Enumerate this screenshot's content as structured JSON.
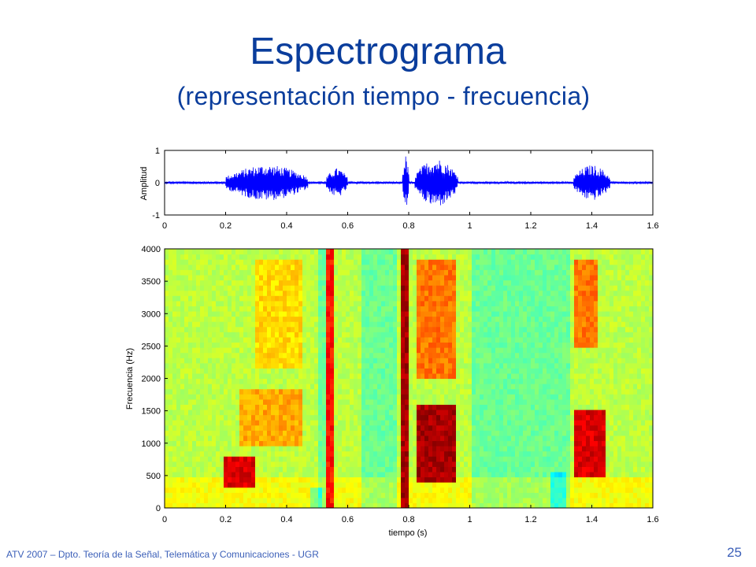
{
  "slide": {
    "title": "Espectrograma",
    "subtitle": "(representación tiempo - frecuencia)",
    "footer": "ATV 2007 – Dpto. Teoría de la Señal, Telemática y Comunicaciones - UGR",
    "page_number": "25"
  },
  "chart_data": [
    {
      "type": "line",
      "name": "waveform",
      "ylabel": "Amplitud",
      "xlabel": "",
      "xlim": [
        0,
        1.6
      ],
      "ylim": [
        -1,
        1
      ],
      "x_ticks": [
        0,
        0.2,
        0.4,
        0.6,
        0.8,
        1,
        1.2,
        1.4,
        1.6
      ],
      "y_ticks": [
        -1,
        0,
        1
      ],
      "x_tick_labels": [
        "0",
        "0.2",
        "0.4",
        "0.6",
        "0.8",
        "1",
        "1.2",
        "1.4",
        "1.6"
      ],
      "y_tick_labels": [
        "-1",
        "0",
        "1"
      ],
      "line_color": "#0000ff",
      "segments": [
        {
          "start": 0.2,
          "end": 0.47,
          "peak_amplitude": 0.55
        },
        {
          "start": 0.53,
          "end": 0.6,
          "peak_amplitude": 0.45
        },
        {
          "start": 0.78,
          "end": 0.8,
          "peak_amplitude": 0.85
        },
        {
          "start": 0.82,
          "end": 0.96,
          "peak_amplitude": 0.75
        },
        {
          "start": 1.34,
          "end": 1.46,
          "peak_amplitude": 0.55
        }
      ]
    },
    {
      "type": "heatmap",
      "name": "spectrogram",
      "xlabel": "tiempo (s)",
      "ylabel": "Frecuencia (Hz)",
      "xlim": [
        0,
        1.6
      ],
      "ylim": [
        0,
        4000
      ],
      "x_ticks": [
        0,
        0.2,
        0.4,
        0.6,
        0.8,
        1,
        1.2,
        1.4,
        1.6
      ],
      "y_ticks": [
        0,
        500,
        1000,
        1500,
        2000,
        2500,
        3000,
        3500,
        4000
      ],
      "x_tick_labels": [
        "0",
        "0.2",
        "0.4",
        "0.6",
        "0.8",
        "1",
        "1.2",
        "1.4",
        "1.6"
      ],
      "y_tick_labels": [
        "0",
        "500",
        "1000",
        "1500",
        "2000",
        "2500",
        "3000",
        "3500",
        "4000"
      ],
      "colormap": "jet",
      "high_energy_regions": [
        {
          "t": [
            0.2,
            0.3
          ],
          "f": [
            300,
            800
          ],
          "level": 0.95
        },
        {
          "t": [
            0.25,
            0.45
          ],
          "f": [
            1000,
            1800
          ],
          "level": 0.75
        },
        {
          "t": [
            0.3,
            0.45
          ],
          "f": [
            2200,
            3800
          ],
          "level": 0.7
        },
        {
          "t": [
            0.53,
            0.55
          ],
          "f": [
            0,
            4000
          ],
          "level": 0.9
        },
        {
          "t": [
            0.78,
            0.8
          ],
          "f": [
            0,
            4000
          ],
          "level": 1.0
        },
        {
          "t": [
            0.83,
            0.95
          ],
          "f": [
            400,
            1600
          ],
          "level": 1.0
        },
        {
          "t": [
            0.83,
            0.95
          ],
          "f": [
            2000,
            3800
          ],
          "level": 0.8
        },
        {
          "t": [
            1.34,
            1.45
          ],
          "f": [
            500,
            1500
          ],
          "level": 0.95
        },
        {
          "t": [
            1.34,
            1.42
          ],
          "f": [
            2500,
            3800
          ],
          "level": 0.8
        }
      ]
    }
  ]
}
